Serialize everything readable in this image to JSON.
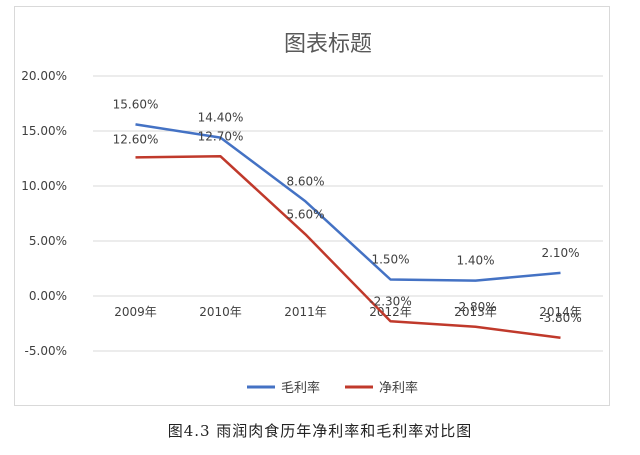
{
  "chart_data": {
    "type": "line",
    "title": "图表标题",
    "categories": [
      "2009年",
      "2010年",
      "2011年",
      "2012年",
      "2013年",
      "2014年"
    ],
    "series": [
      {
        "name": "毛利率",
        "color": "#4472c4",
        "values": [
          15.6,
          14.4,
          8.6,
          1.5,
          1.4,
          2.1
        ],
        "labels": [
          "15.60%",
          "14.40%",
          "8.60%",
          "1.50%",
          "1.40%",
          "2.10%"
        ]
      },
      {
        "name": "净利率",
        "color": "#c0392b",
        "values": [
          12.6,
          12.7,
          5.6,
          -2.3,
          -2.8,
          -3.8
        ],
        "labels": [
          "12.60%",
          "12.70%",
          "5.60%",
          "-2.30%",
          "-2.80%",
          "-3.80%"
        ]
      }
    ],
    "ylim": [
      -5,
      20
    ],
    "yticks": [
      -5,
      0,
      5,
      10,
      15,
      20
    ],
    "ytick_labels": [
      "-5.00%",
      "0.00%",
      "5.00%",
      "10.00%",
      "15.00%",
      "20.00%"
    ],
    "grid": true,
    "legend": "bottom"
  },
  "caption": "图4.3  雨润肉食历年净利率和毛利率对比图"
}
